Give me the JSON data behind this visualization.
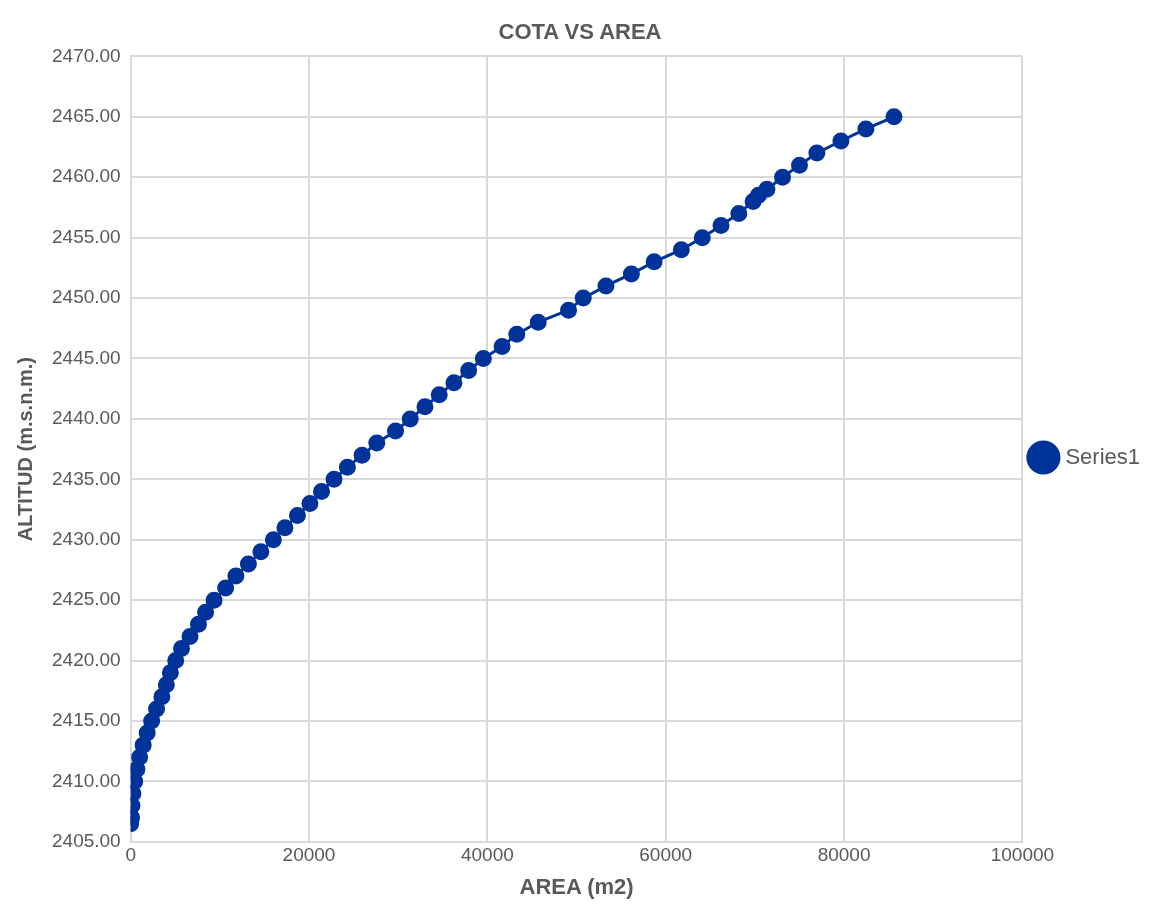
{
  "chart_data": {
    "type": "line",
    "title": "COTA VS AREA",
    "xlabel": "AREA (m2)",
    "ylabel": "ALTITUD (m.s.n.m.)",
    "x": [
      0,
      100,
      150,
      250,
      450,
      700,
      1000,
      1400,
      1850,
      2350,
      2900,
      3500,
      4000,
      4450,
      5050,
      5700,
      6650,
      7600,
      8400,
      9350,
      10650,
      11800,
      13200,
      14600,
      16000,
      17300,
      18700,
      20100,
      21400,
      22800,
      24300,
      25950,
      27600,
      29700,
      31350,
      33000,
      34600,
      36250,
      37900,
      39550,
      41650,
      43300,
      45700,
      49100,
      50750,
      53300,
      56150,
      58700,
      61750,
      64100,
      66200,
      68200,
      69800,
      70400,
      71350,
      73100,
      75000,
      76950,
      79650,
      82450,
      85600
    ],
    "series": [
      {
        "name": "Series1",
        "color": "#003399",
        "values": [
          2406.5,
          2407,
          2408,
          2409,
          2410,
          2411,
          2412,
          2413,
          2414,
          2415,
          2416,
          2417,
          2418,
          2419,
          2420,
          2421,
          2422,
          2423,
          2424,
          2425,
          2426,
          2427,
          2428,
          2429,
          2430,
          2431,
          2432,
          2433,
          2434,
          2435,
          2436,
          2437,
          2438,
          2439,
          2440,
          2441,
          2442,
          2443,
          2444,
          2445,
          2446,
          2447,
          2448,
          2449,
          2450,
          2451,
          2452,
          2453,
          2454,
          2455,
          2456,
          2457,
          2458,
          2458.5,
          2459,
          2460,
          2461,
          2462,
          2463,
          2464,
          2465
        ]
      }
    ],
    "xlim": [
      0,
      100000
    ],
    "xticks": [
      0,
      20000,
      40000,
      60000,
      80000,
      100000
    ],
    "ylim": [
      2405,
      2470
    ],
    "yticks": [
      {
        "value": 2405,
        "label": "2405.00"
      },
      {
        "value": 2410,
        "label": "2410.00"
      },
      {
        "value": 2415,
        "label": "2415.00"
      },
      {
        "value": 2420,
        "label": "2420.00"
      },
      {
        "value": 2425,
        "label": "2425.00"
      },
      {
        "value": 2430,
        "label": "2430.00"
      },
      {
        "value": 2435,
        "label": "2435.00"
      },
      {
        "value": 2440,
        "label": "2440.00"
      },
      {
        "value": 2445,
        "label": "2445.00"
      },
      {
        "value": 2450,
        "label": "2450.00"
      },
      {
        "value": 2455,
        "label": "2455.00"
      },
      {
        "value": 2460,
        "label": "2460.00"
      },
      {
        "value": 2465,
        "label": "2465.00"
      },
      {
        "value": 2470,
        "label": "2470.00"
      }
    ],
    "grid": true,
    "legend": "right",
    "marker": "circle",
    "line_style": "solid"
  }
}
